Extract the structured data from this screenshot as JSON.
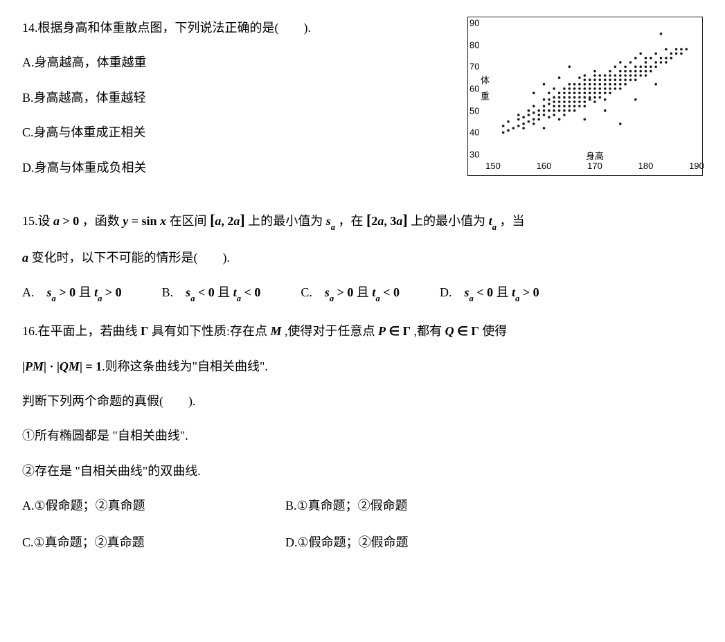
{
  "q14": {
    "number": "14.",
    "stem": "根据身高和体重散点图，下列说法正确的是(　　).",
    "options": {
      "A": "A.身高越高，体重越重",
      "B": "B.身高越高，体重越轻",
      "C": "C.身高与体重成正相关",
      "D": "D.身高与体重成负相关"
    },
    "chart": {
      "type": "scatter",
      "xlim": [
        150,
        190
      ],
      "ylim": [
        30,
        90
      ],
      "xticks": [
        150,
        160,
        170,
        180,
        190
      ],
      "yticks": [
        30,
        40,
        50,
        60,
        70,
        80,
        90
      ],
      "xlabel": "身高",
      "ylabel": "体重",
      "tick_fontsize": 13,
      "label_fontsize": 13,
      "point_color": "#1a1a1a",
      "point_radius": 1.8,
      "background": "#ffffff",
      "border_color": "#222222",
      "points": [
        [
          152,
          40
        ],
        [
          152,
          43
        ],
        [
          153,
          41
        ],
        [
          153,
          45
        ],
        [
          154,
          42
        ],
        [
          155,
          43
        ],
        [
          155,
          46
        ],
        [
          155,
          48
        ],
        [
          156,
          44
        ],
        [
          156,
          42
        ],
        [
          156,
          47
        ],
        [
          157,
          45
        ],
        [
          157,
          48
        ],
        [
          157,
          50
        ],
        [
          158,
          46
        ],
        [
          158,
          49
        ],
        [
          158,
          44
        ],
        [
          158,
          52
        ],
        [
          159,
          48
        ],
        [
          159,
          50
        ],
        [
          159,
          46
        ],
        [
          160,
          48
        ],
        [
          160,
          50
        ],
        [
          160,
          52
        ],
        [
          160,
          55
        ],
        [
          160,
          42
        ],
        [
          161,
          50
        ],
        [
          161,
          47
        ],
        [
          161,
          53
        ],
        [
          161,
          55
        ],
        [
          161,
          58
        ],
        [
          162,
          48
        ],
        [
          162,
          50
        ],
        [
          162,
          52
        ],
        [
          162,
          54
        ],
        [
          162,
          56
        ],
        [
          162,
          60
        ],
        [
          163,
          50
        ],
        [
          163,
          52
        ],
        [
          163,
          54
        ],
        [
          163,
          56
        ],
        [
          163,
          58
        ],
        [
          163,
          46
        ],
        [
          164,
          50
        ],
        [
          164,
          52
        ],
        [
          164,
          54
        ],
        [
          164,
          56
        ],
        [
          164,
          58
        ],
        [
          164,
          60
        ],
        [
          164,
          48
        ],
        [
          165,
          52
        ],
        [
          165,
          54
        ],
        [
          165,
          56
        ],
        [
          165,
          58
        ],
        [
          165,
          60
        ],
        [
          165,
          50
        ],
        [
          165,
          62
        ],
        [
          166,
          52
        ],
        [
          166,
          54
        ],
        [
          166,
          56
        ],
        [
          166,
          58
        ],
        [
          166,
          60
        ],
        [
          166,
          62
        ],
        [
          166,
          50
        ],
        [
          167,
          54
        ],
        [
          167,
          56
        ],
        [
          167,
          58
        ],
        [
          167,
          60
        ],
        [
          167,
          62
        ],
        [
          167,
          52
        ],
        [
          167,
          65
        ],
        [
          168,
          54
        ],
        [
          168,
          56
        ],
        [
          168,
          58
        ],
        [
          168,
          60
        ],
        [
          168,
          62
        ],
        [
          168,
          64
        ],
        [
          168,
          66
        ],
        [
          168,
          52
        ],
        [
          169,
          56
        ],
        [
          169,
          58
        ],
        [
          169,
          60
        ],
        [
          169,
          62
        ],
        [
          169,
          64
        ],
        [
          169,
          55
        ],
        [
          170,
          56
        ],
        [
          170,
          58
        ],
        [
          170,
          60
        ],
        [
          170,
          62
        ],
        [
          170,
          64
        ],
        [
          170,
          66
        ],
        [
          170,
          54
        ],
        [
          170,
          68
        ],
        [
          171,
          58
        ],
        [
          171,
          60
        ],
        [
          171,
          62
        ],
        [
          171,
          64
        ],
        [
          171,
          66
        ],
        [
          171,
          56
        ],
        [
          172,
          60
        ],
        [
          172,
          62
        ],
        [
          172,
          64
        ],
        [
          172,
          66
        ],
        [
          172,
          58
        ],
        [
          172,
          55
        ],
        [
          173,
          60
        ],
        [
          173,
          62
        ],
        [
          173,
          64
        ],
        [
          173,
          66
        ],
        [
          173,
          68
        ],
        [
          173,
          58
        ],
        [
          174,
          62
        ],
        [
          174,
          64
        ],
        [
          174,
          66
        ],
        [
          174,
          60
        ],
        [
          174,
          70
        ],
        [
          175,
          62
        ],
        [
          175,
          64
        ],
        [
          175,
          66
        ],
        [
          175,
          68
        ],
        [
          175,
          60
        ],
        [
          175,
          72
        ],
        [
          176,
          64
        ],
        [
          176,
          66
        ],
        [
          176,
          68
        ],
        [
          176,
          62
        ],
        [
          176,
          70
        ],
        [
          177,
          66
        ],
        [
          177,
          68
        ],
        [
          177,
          64
        ],
        [
          177,
          72
        ],
        [
          178,
          66
        ],
        [
          178,
          68
        ],
        [
          178,
          70
        ],
        [
          178,
          64
        ],
        [
          178,
          74
        ],
        [
          179,
          68
        ],
        [
          179,
          70
        ],
        [
          179,
          66
        ],
        [
          179,
          76
        ],
        [
          180,
          68
        ],
        [
          180,
          70
        ],
        [
          180,
          72
        ],
        [
          180,
          74
        ],
        [
          180,
          66
        ],
        [
          181,
          70
        ],
        [
          181,
          68
        ],
        [
          181,
          74
        ],
        [
          182,
          72
        ],
        [
          182,
          70
        ],
        [
          182,
          76
        ],
        [
          183,
          74
        ],
        [
          183,
          72
        ],
        [
          183,
          85
        ],
        [
          184,
          74
        ],
        [
          184,
          72
        ],
        [
          184,
          78
        ],
        [
          185,
          76
        ],
        [
          185,
          74
        ],
        [
          186,
          76
        ],
        [
          186,
          78
        ],
        [
          187,
          78
        ],
        [
          187,
          76
        ],
        [
          188,
          78
        ],
        [
          175,
          44
        ],
        [
          168,
          46
        ],
        [
          160,
          62
        ],
        [
          172,
          50
        ],
        [
          178,
          55
        ],
        [
          158,
          58
        ],
        [
          182,
          62
        ],
        [
          165,
          70
        ],
        [
          163,
          65
        ]
      ]
    }
  },
  "q15": {
    "number": "15.",
    "stem_part1": "设",
    "a_gt_0": "a > 0",
    "stem_part2": "，函数",
    "func": "y = sin x",
    "stem_part3": "在区间",
    "interval1_l": "[",
    "interval1_c": "a, 2a",
    "interval1_r": "]",
    "stem_part4": "上的最小值为",
    "sa": "s",
    "sa_sub": "a",
    "stem_part5": "，在",
    "interval2_l": "[",
    "interval2_c": "2a, 3a",
    "interval2_r": "]",
    "stem_part6": "上的最小值为",
    "ta": "t",
    "ta_sub": "a",
    "stem_part7": "，当",
    "line2_a": "a",
    "line2_tail": "变化时，以下不可能的情形是(　　).",
    "options": {
      "A_pre": "A.　",
      "A_expr": "s_a > 0 且 t_a > 0",
      "B_pre": "B.　",
      "B_expr": "s_a < 0 且 t_a < 0",
      "C_pre": "C.　",
      "C_expr": "s_a > 0 且 t_a < 0",
      "D_pre": "D.　",
      "D_expr": "s_a < 0 且 t_a > 0"
    }
  },
  "q16": {
    "number": "16.",
    "stem_l1_a": "在平面上，若曲线",
    "Gamma1": "Γ",
    "stem_l1_b": "具有如下性质:存在点",
    "M": "M",
    "stem_l1_c": ",使得对于任意点",
    "P": "P",
    "in1": "∈",
    "Gamma2": "Γ",
    "stem_l1_d": ",都有",
    "Q": "Q",
    "in2": "∈",
    "Gamma3": "Γ",
    "stem_l1_e": "使得",
    "abs_open1": "|",
    "PM": "PM",
    "abs_close1": "|",
    "dot": "·",
    "abs_open2": "|",
    "QM": "QM",
    "abs_close2": "|",
    "eq1": "= 1",
    "stem_l2_tail": ".则称这条曲线为\"自相关曲线\".",
    "judge": "判断下列两个命题的真假(　　).",
    "p1": "①所有椭圆都是 \"自相关曲线\".",
    "p2": "②存在是 \"自相关曲线\"的双曲线.",
    "options": {
      "A": "A.①假命题；②真命题",
      "B": "B.①真命题；②假命题",
      "C": "C.①真命题；②真命题",
      "D": "D.①假命题；②假命题"
    }
  }
}
